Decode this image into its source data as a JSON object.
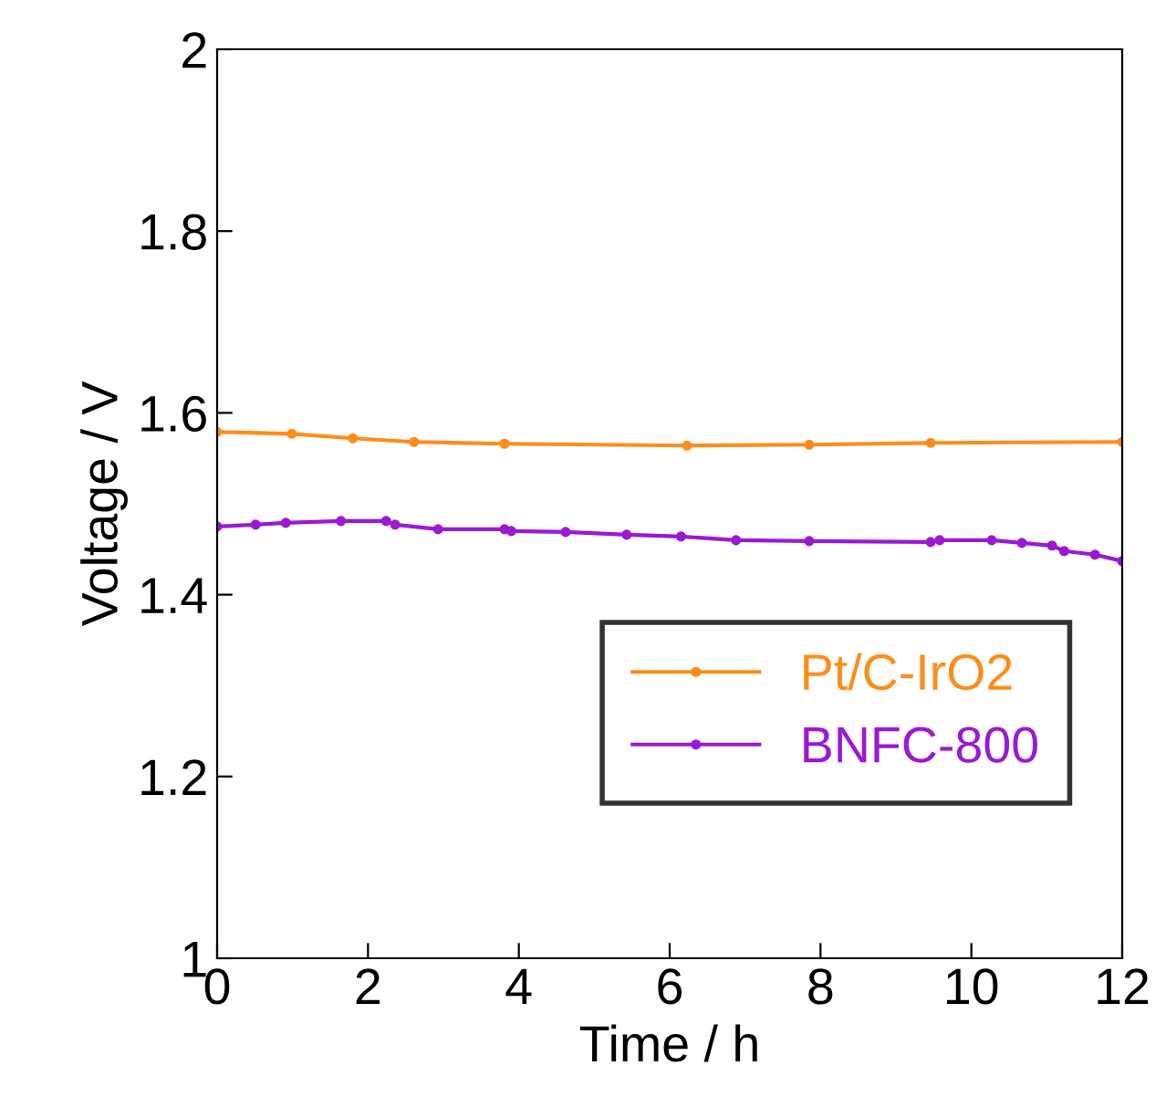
{
  "chart_data": {
    "type": "line",
    "xlabel": "Time / h",
    "ylabel": "Voltage / V",
    "xlim": [
      0,
      12
    ],
    "xticks": [
      0,
      2,
      4,
      6,
      8,
      10,
      12
    ],
    "ylim": [
      1,
      2
    ],
    "yticks": [
      1,
      1.2,
      1.4,
      1.6,
      1.8,
      2
    ],
    "grid": false,
    "legend": "right",
    "marker": "circle",
    "series": [
      {
        "name": "Pt/C-IrO2",
        "color": "#ff8c1a",
        "x": [
          0,
          0.99,
          1.8,
          2.61,
          3.81,
          6.23,
          7.85,
          9.46,
          12
        ],
        "values": [
          1.579,
          1.577,
          1.572,
          1.568,
          1.566,
          1.564,
          1.565,
          1.567,
          1.568
        ]
      },
      {
        "name": "BNFC-800",
        "color": "#9b19d4",
        "x": [
          0,
          0.51,
          0.91,
          1.64,
          2.24,
          2.36,
          2.93,
          3.81,
          3.9,
          4.62,
          5.43,
          6.15,
          6.88,
          7.85,
          9.46,
          9.58,
          10.27,
          10.67,
          11.07,
          11.23,
          11.64,
          12
        ],
        "values": [
          1.475,
          1.477,
          1.479,
          1.481,
          1.481,
          1.477,
          1.472,
          1.472,
          1.47,
          1.469,
          1.466,
          1.464,
          1.46,
          1.459,
          1.458,
          1.46,
          1.46,
          1.457,
          1.454,
          1.448,
          1.444,
          1.437
        ]
      }
    ]
  }
}
